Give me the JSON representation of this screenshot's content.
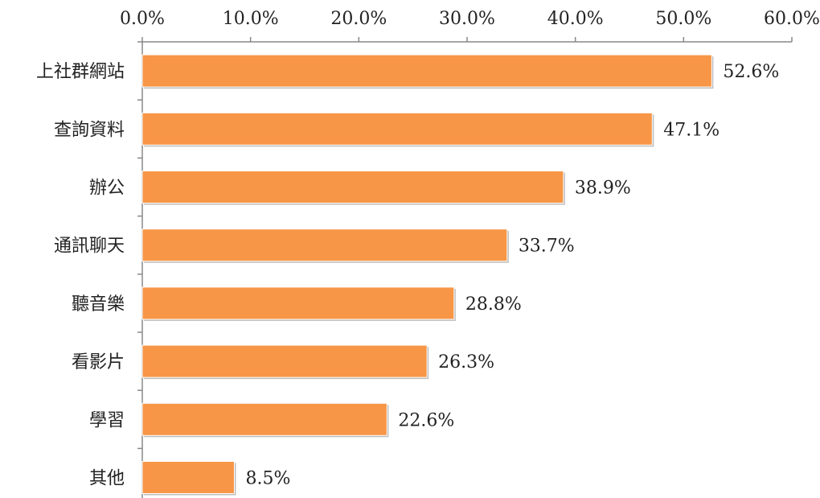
{
  "chart_data": {
    "type": "bar",
    "orientation": "horizontal",
    "title": "",
    "xlabel": "",
    "ylabel": "",
    "categories": [
      "上社群網站",
      "查詢資料",
      "辦公",
      "通訊聊天",
      "聽音樂",
      "看影片",
      "學習",
      "其他"
    ],
    "values": [
      52.6,
      47.1,
      38.9,
      33.7,
      28.8,
      26.3,
      22.6,
      8.5
    ],
    "value_labels": [
      "52.6%",
      "47.1%",
      "38.9%",
      "33.7%",
      "28.8%",
      "26.3%",
      "22.6%",
      "8.5%"
    ],
    "xlim": [
      0,
      60
    ],
    "xticks": [
      0,
      10,
      20,
      30,
      40,
      50,
      60
    ],
    "xtick_labels": [
      "0.0%",
      "10.0%",
      "20.0%",
      "30.0%",
      "40.0%",
      "50.0%",
      "60.0%"
    ],
    "x_axis_position": "top",
    "grid": false,
    "legend": "none",
    "bar_color": "#F79646",
    "bar_edge_color": "#FFFFFF",
    "axis_color": "#888888"
  }
}
